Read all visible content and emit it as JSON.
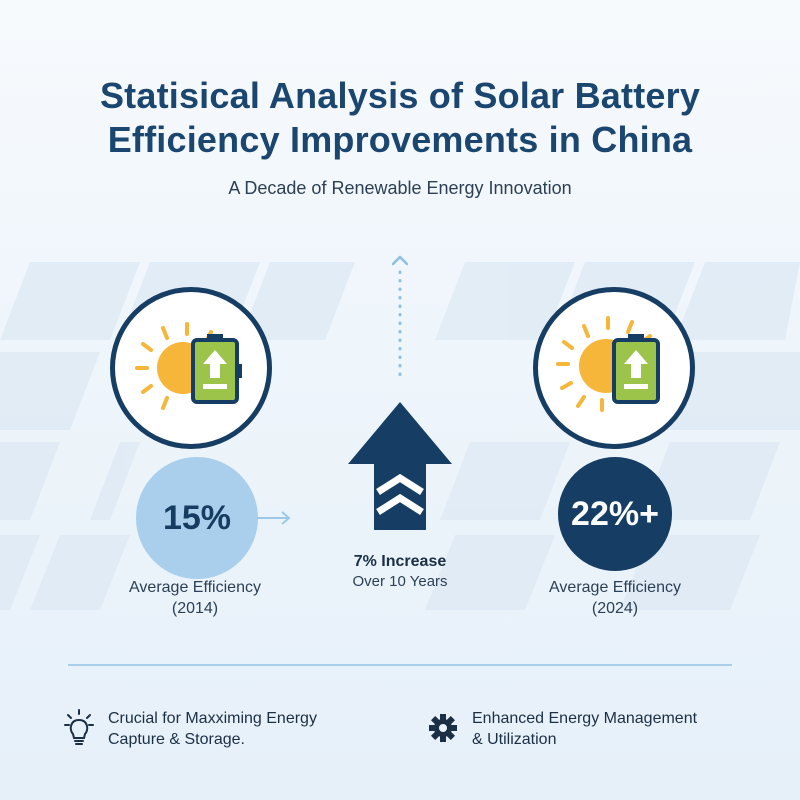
{
  "title_line1": "Statisical Analysis of Solar Battery",
  "title_line2": "Efficiency Improvements in China",
  "subtitle": "A Decade of Renewable Energy Innovation",
  "left_stat": {
    "value": "15%",
    "label_line1": "Average Efficiency",
    "label_line2": "(2014)",
    "icon": "sun-battery-icon"
  },
  "right_stat": {
    "value": "22%+",
    "label_line1": "Average Efficiency",
    "label_line2": "(2024)",
    "icon": "sun-battery-icon"
  },
  "center": {
    "title": "7% Increase",
    "subtitle": "Over 10 Years",
    "icon": "up-arrow-icon"
  },
  "footer": {
    "left_line1": "Crucial for Maxximing Energy",
    "left_line2": "Capture & Storage.",
    "left_icon": "lightbulb-icon",
    "right_line1": "Enhanced Energy Management",
    "right_line2": "& Utilization",
    "right_icon": "gear-icon"
  },
  "colors": {
    "navy": "#163d63",
    "light_blue": "#a9cfec",
    "sun": "#f5b63a",
    "battery": "#9cc44a"
  }
}
